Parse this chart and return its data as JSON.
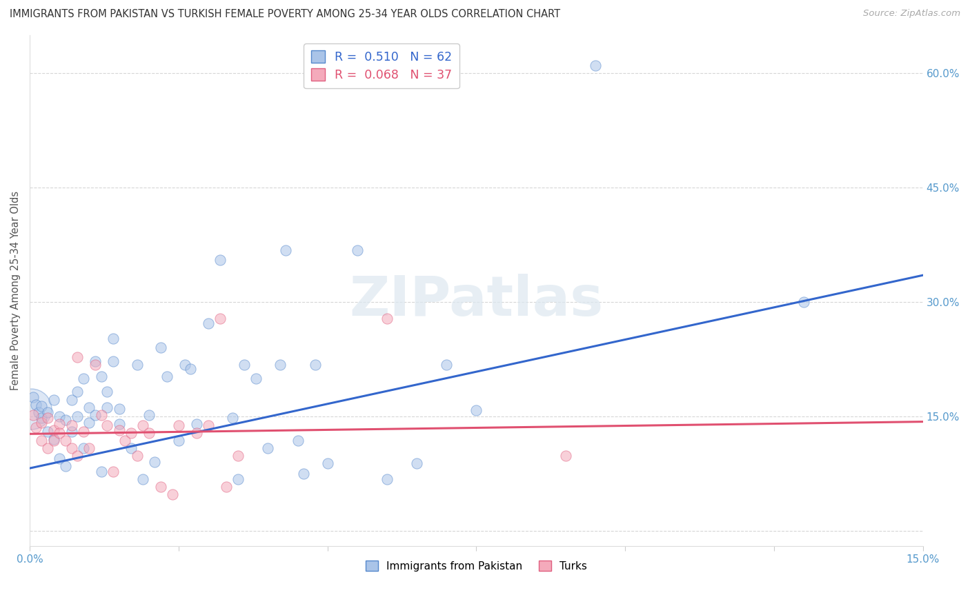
{
  "title": "IMMIGRANTS FROM PAKISTAN VS TURKISH FEMALE POVERTY AMONG 25-34 YEAR OLDS CORRELATION CHART",
  "source": "Source: ZipAtlas.com",
  "ylabel": "Female Poverty Among 25-34 Year Olds",
  "xmin": 0.0,
  "xmax": 0.15,
  "ymin": -0.02,
  "ymax": 0.65,
  "watermark": "ZIPatlas",
  "legend_label_1": "Immigrants from Pakistan",
  "legend_label_2": "Turks",
  "blue_color": "#aac4e8",
  "pink_color": "#f4aabb",
  "blue_edge_color": "#5588cc",
  "pink_edge_color": "#e06080",
  "blue_line_color": "#3366cc",
  "pink_line_color": "#e05070",
  "axis_color": "#5599cc",
  "grid_color": "#cccccc",
  "pakistan_R": 0.51,
  "pakistan_N": 62,
  "turk_R": 0.068,
  "turk_N": 37,
  "pakistan_data": [
    [
      0.0005,
      0.175
    ],
    [
      0.001,
      0.165
    ],
    [
      0.0015,
      0.155
    ],
    [
      0.002,
      0.148
    ],
    [
      0.002,
      0.163
    ],
    [
      0.003,
      0.13
    ],
    [
      0.003,
      0.155
    ],
    [
      0.004,
      0.12
    ],
    [
      0.004,
      0.172
    ],
    [
      0.005,
      0.095
    ],
    [
      0.005,
      0.15
    ],
    [
      0.006,
      0.085
    ],
    [
      0.006,
      0.145
    ],
    [
      0.007,
      0.172
    ],
    [
      0.007,
      0.13
    ],
    [
      0.008,
      0.182
    ],
    [
      0.008,
      0.15
    ],
    [
      0.009,
      0.108
    ],
    [
      0.009,
      0.2
    ],
    [
      0.01,
      0.142
    ],
    [
      0.01,
      0.162
    ],
    [
      0.011,
      0.222
    ],
    [
      0.011,
      0.152
    ],
    [
      0.012,
      0.078
    ],
    [
      0.012,
      0.202
    ],
    [
      0.013,
      0.182
    ],
    [
      0.013,
      0.162
    ],
    [
      0.014,
      0.252
    ],
    [
      0.014,
      0.222
    ],
    [
      0.015,
      0.14
    ],
    [
      0.015,
      0.16
    ],
    [
      0.017,
      0.108
    ],
    [
      0.018,
      0.218
    ],
    [
      0.019,
      0.068
    ],
    [
      0.02,
      0.152
    ],
    [
      0.021,
      0.09
    ],
    [
      0.022,
      0.24
    ],
    [
      0.023,
      0.202
    ],
    [
      0.025,
      0.118
    ],
    [
      0.026,
      0.218
    ],
    [
      0.027,
      0.212
    ],
    [
      0.028,
      0.14
    ],
    [
      0.03,
      0.272
    ],
    [
      0.032,
      0.355
    ],
    [
      0.034,
      0.148
    ],
    [
      0.035,
      0.068
    ],
    [
      0.036,
      0.218
    ],
    [
      0.038,
      0.2
    ],
    [
      0.04,
      0.108
    ],
    [
      0.042,
      0.218
    ],
    [
      0.043,
      0.368
    ],
    [
      0.045,
      0.118
    ],
    [
      0.046,
      0.075
    ],
    [
      0.048,
      0.218
    ],
    [
      0.05,
      0.088
    ],
    [
      0.055,
      0.368
    ],
    [
      0.06,
      0.068
    ],
    [
      0.065,
      0.088
    ],
    [
      0.07,
      0.218
    ],
    [
      0.075,
      0.158
    ],
    [
      0.095,
      0.61
    ],
    [
      0.13,
      0.3
    ]
  ],
  "turk_data": [
    [
      0.0005,
      0.152
    ],
    [
      0.001,
      0.135
    ],
    [
      0.002,
      0.142
    ],
    [
      0.002,
      0.118
    ],
    [
      0.003,
      0.148
    ],
    [
      0.003,
      0.108
    ],
    [
      0.004,
      0.132
    ],
    [
      0.004,
      0.118
    ],
    [
      0.005,
      0.14
    ],
    [
      0.005,
      0.128
    ],
    [
      0.006,
      0.118
    ],
    [
      0.007,
      0.108
    ],
    [
      0.007,
      0.138
    ],
    [
      0.008,
      0.228
    ],
    [
      0.008,
      0.098
    ],
    [
      0.009,
      0.13
    ],
    [
      0.01,
      0.108
    ],
    [
      0.011,
      0.218
    ],
    [
      0.012,
      0.152
    ],
    [
      0.013,
      0.138
    ],
    [
      0.014,
      0.078
    ],
    [
      0.015,
      0.132
    ],
    [
      0.016,
      0.118
    ],
    [
      0.017,
      0.128
    ],
    [
      0.018,
      0.098
    ],
    [
      0.019,
      0.138
    ],
    [
      0.02,
      0.128
    ],
    [
      0.022,
      0.058
    ],
    [
      0.024,
      0.048
    ],
    [
      0.025,
      0.138
    ],
    [
      0.028,
      0.128
    ],
    [
      0.03,
      0.138
    ],
    [
      0.032,
      0.278
    ],
    [
      0.033,
      0.058
    ],
    [
      0.035,
      0.098
    ],
    [
      0.06,
      0.278
    ],
    [
      0.09,
      0.098
    ]
  ],
  "pak_line_x0": 0.0,
  "pak_line_y0": 0.082,
  "pak_line_x1": 0.15,
  "pak_line_y1": 0.335,
  "turk_line_x0": 0.0,
  "turk_line_y0": 0.127,
  "turk_line_x1": 0.15,
  "turk_line_y1": 0.143,
  "background_color": "#ffffff",
  "title_fontsize": 10.5,
  "source_fontsize": 9.5,
  "marker_size": 120
}
